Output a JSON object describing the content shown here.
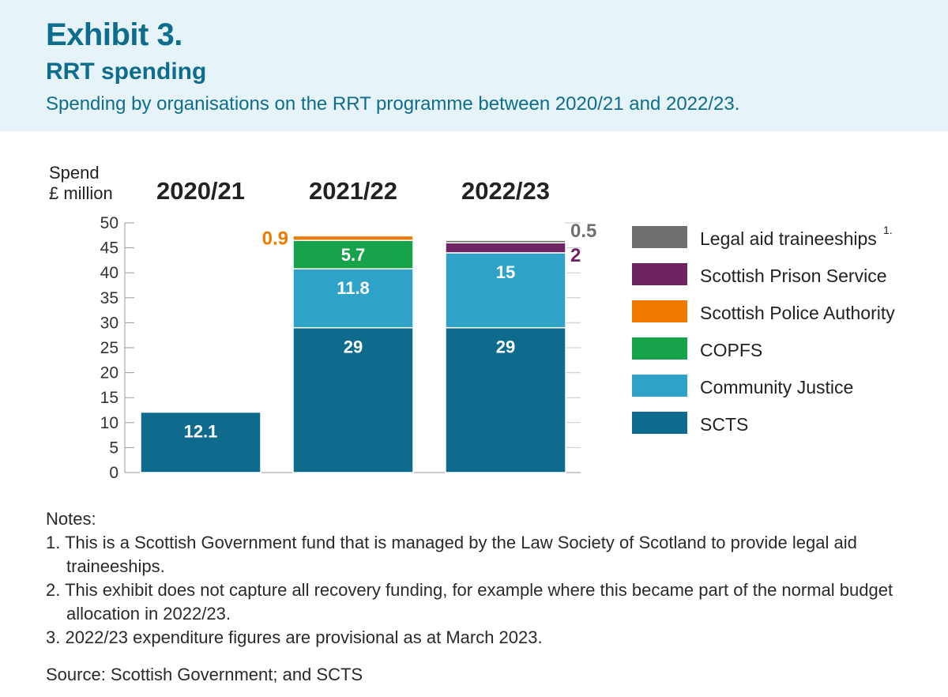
{
  "header": {
    "title": "Exhibit 3.",
    "subtitle": "RRT spending",
    "description": "Spending by organisations on the RRT programme between 2020/21 and 2022/23."
  },
  "chart_data": {
    "type": "bar",
    "stacked": true,
    "ylabel": [
      "Spend",
      "£ million"
    ],
    "ylim": [
      0,
      50
    ],
    "yticks": [
      0,
      5,
      10,
      15,
      20,
      25,
      30,
      35,
      40,
      45,
      50
    ],
    "categories": [
      "2020/21",
      "2021/22",
      "2022/23"
    ],
    "series": [
      {
        "name": "SCTS",
        "color": "#0e6b8d",
        "values": [
          12.1,
          29,
          29
        ],
        "labels": [
          "12.1",
          "29",
          "29"
        ],
        "label_color": "#ffffff",
        "label_position": "inside-top"
      },
      {
        "name": "Community Justice",
        "color": "#2ea3c7",
        "values": [
          0,
          11.8,
          15
        ],
        "labels": [
          "",
          "11.8",
          "15"
        ],
        "label_color": "#ffffff",
        "label_position": "inside-top"
      },
      {
        "name": "COPFS",
        "color": "#16a34a",
        "values": [
          0,
          5.7,
          0
        ],
        "labels": [
          "",
          "5.7",
          ""
        ],
        "label_color": "#ffffff",
        "label_position": "inside-center"
      },
      {
        "name": "Scottish Police Authority",
        "color": "#f07a00",
        "values": [
          0,
          0.9,
          0
        ],
        "labels": [
          "",
          "0.9",
          ""
        ],
        "label_color": "#f07a00",
        "label_position": "left"
      },
      {
        "name": "Scottish Prison Service",
        "color": "#6e2363",
        "values": [
          0,
          0,
          2
        ],
        "labels": [
          "",
          "",
          "2"
        ],
        "label_color": "#6e2363",
        "label_position": "right"
      },
      {
        "name": "Legal aid traineeships",
        "color": "#707070",
        "values": [
          0,
          0,
          0.5
        ],
        "labels": [
          "",
          "",
          "0.5"
        ],
        "label_color": "#707070",
        "label_position": "right"
      }
    ],
    "legend": {
      "position": "right",
      "order": [
        "Legal aid traineeships",
        "Scottish Prison Service",
        "Scottish Police Authority",
        "COPFS",
        "Community Justice",
        "SCTS"
      ],
      "footnote_marks": {
        "Legal aid traineeships": "1."
      }
    },
    "grid": "y-tick-marks"
  },
  "notes": {
    "heading": "Notes:",
    "items": [
      "1. This is a Scottish Government fund that is managed by the Law Society of Scotland to provide legal aid traineeships.",
      "2. This exhibit does not capture all recovery funding, for example where this became part of the normal budget allocation in 2022/23.",
      "3. 2022/23 expenditure figures are provisional as at March 2023."
    ]
  },
  "source": "Source: Scottish Government; and SCTS"
}
